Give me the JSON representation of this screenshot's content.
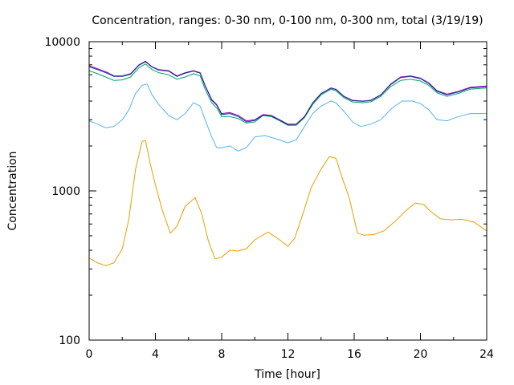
{
  "chart_data": {
    "type": "line",
    "title": "Concentration, ranges: 0-30 nm, 0-100 nm, 0-300 nm, total (3/19/19)",
    "xlabel": "Time [hour]",
    "ylabel": "Concentration",
    "xlim": [
      0,
      24
    ],
    "ylim": [
      100,
      10000
    ],
    "yscale": "log",
    "x_ticks": [
      0,
      4,
      8,
      12,
      16,
      20,
      24
    ],
    "x_tick_labels": [
      "0",
      "4",
      "8",
      "12",
      "16",
      "20",
      "24"
    ],
    "y_ticks": [
      100,
      1000,
      10000
    ],
    "y_tick_labels": [
      "100",
      "1000",
      "10000"
    ],
    "grid": false,
    "legend": "none",
    "series": [
      {
        "color": "#e69f00",
        "points": [
          [
            0,
            355
          ],
          [
            0.5,
            330
          ],
          [
            1,
            315
          ],
          [
            1.5,
            330
          ],
          [
            2,
            410
          ],
          [
            2.4,
            650
          ],
          [
            2.8,
            1400
          ],
          [
            3.2,
            2150
          ],
          [
            3.4,
            2180
          ],
          [
            3.7,
            1500
          ],
          [
            4,
            1100
          ],
          [
            4.4,
            750
          ],
          [
            4.9,
            520
          ],
          [
            5.3,
            580
          ],
          [
            5.8,
            790
          ],
          [
            6.4,
            900
          ],
          [
            6.8,
            700
          ],
          [
            7.2,
            460
          ],
          [
            7.6,
            350
          ],
          [
            8,
            360
          ],
          [
            8.5,
            400
          ],
          [
            9,
            395
          ],
          [
            9.5,
            410
          ],
          [
            10,
            470
          ],
          [
            10.8,
            530
          ],
          [
            11.5,
            470
          ],
          [
            12,
            425
          ],
          [
            12.4,
            480
          ],
          [
            12.9,
            700
          ],
          [
            13.4,
            1050
          ],
          [
            14,
            1400
          ],
          [
            14.5,
            1700
          ],
          [
            14.9,
            1650
          ],
          [
            15.3,
            1200
          ],
          [
            15.7,
            900
          ],
          [
            16.2,
            520
          ],
          [
            16.6,
            505
          ],
          [
            17.2,
            510
          ],
          [
            17.8,
            540
          ],
          [
            18.5,
            630
          ],
          [
            19.2,
            750
          ],
          [
            19.7,
            830
          ],
          [
            20.2,
            810
          ],
          [
            20.6,
            730
          ],
          [
            21.2,
            650
          ],
          [
            21.8,
            640
          ],
          [
            22.5,
            645
          ],
          [
            23.2,
            620
          ],
          [
            24,
            540
          ]
        ]
      },
      {
        "color": "#56b4e9",
        "points": [
          [
            0,
            2950
          ],
          [
            0.5,
            2800
          ],
          [
            1,
            2650
          ],
          [
            1.5,
            2700
          ],
          [
            2,
            3000
          ],
          [
            2.4,
            3500
          ],
          [
            2.8,
            4500
          ],
          [
            3.2,
            5100
          ],
          [
            3.5,
            5200
          ],
          [
            3.8,
            4400
          ],
          [
            4.2,
            3800
          ],
          [
            4.8,
            3200
          ],
          [
            5.3,
            3000
          ],
          [
            5.8,
            3300
          ],
          [
            6.3,
            3900
          ],
          [
            6.7,
            3700
          ],
          [
            7,
            3000
          ],
          [
            7.4,
            2300
          ],
          [
            7.7,
            1950
          ],
          [
            8,
            1950
          ],
          [
            8.5,
            2000
          ],
          [
            9,
            1850
          ],
          [
            9.5,
            1950
          ],
          [
            10,
            2300
          ],
          [
            10.6,
            2350
          ],
          [
            11.2,
            2250
          ],
          [
            12,
            2100
          ],
          [
            12.5,
            2200
          ],
          [
            13,
            2700
          ],
          [
            13.5,
            3300
          ],
          [
            14,
            3700
          ],
          [
            14.6,
            4000
          ],
          [
            14.9,
            3900
          ],
          [
            15.4,
            3400
          ],
          [
            15.9,
            2900
          ],
          [
            16.4,
            2700
          ],
          [
            17,
            2800
          ],
          [
            17.6,
            3000
          ],
          [
            18.3,
            3600
          ],
          [
            18.9,
            4000
          ],
          [
            19.5,
            4000
          ],
          [
            20,
            3850
          ],
          [
            20.5,
            3500
          ],
          [
            21,
            3000
          ],
          [
            21.6,
            2950
          ],
          [
            22.3,
            3150
          ],
          [
            23,
            3300
          ],
          [
            24,
            3300
          ]
        ]
      },
      {
        "color": "#009e73",
        "points": [
          [
            0,
            6400
          ],
          [
            0.5,
            6100
          ],
          [
            1,
            5800
          ],
          [
            1.5,
            5500
          ],
          [
            2,
            5550
          ],
          [
            2.5,
            5800
          ],
          [
            3,
            6700
          ],
          [
            3.4,
            7100
          ],
          [
            3.8,
            6500
          ],
          [
            4.2,
            6200
          ],
          [
            4.8,
            6000
          ],
          [
            5.3,
            5600
          ],
          [
            5.8,
            5800
          ],
          [
            6.3,
            6100
          ],
          [
            6.7,
            5900
          ],
          [
            7,
            4800
          ],
          [
            7.4,
            3900
          ],
          [
            7.7,
            3600
          ],
          [
            8,
            3150
          ],
          [
            8.5,
            3150
          ],
          [
            9,
            3050
          ],
          [
            9.5,
            2850
          ],
          [
            10,
            2900
          ],
          [
            10.5,
            3200
          ],
          [
            11,
            3150
          ],
          [
            11.5,
            2950
          ],
          [
            12,
            2750
          ],
          [
            12.5,
            2750
          ],
          [
            13,
            3100
          ],
          [
            13.5,
            3800
          ],
          [
            14,
            4400
          ],
          [
            14.6,
            4800
          ],
          [
            14.9,
            4700
          ],
          [
            15.4,
            4200
          ],
          [
            15.9,
            3950
          ],
          [
            16.5,
            3900
          ],
          [
            17,
            3950
          ],
          [
            17.6,
            4300
          ],
          [
            18.2,
            5000
          ],
          [
            18.8,
            5500
          ],
          [
            19.4,
            5600
          ],
          [
            20,
            5450
          ],
          [
            20.5,
            5100
          ],
          [
            21,
            4550
          ],
          [
            21.6,
            4300
          ],
          [
            22.3,
            4500
          ],
          [
            23,
            4800
          ],
          [
            24,
            4900
          ]
        ]
      },
      {
        "color": "#9400d3",
        "points": [
          [
            0,
            6900
          ],
          [
            0.5,
            6600
          ],
          [
            1,
            6300
          ],
          [
            1.5,
            5900
          ],
          [
            2,
            5900
          ],
          [
            2.5,
            6100
          ],
          [
            3,
            7000
          ],
          [
            3.4,
            7400
          ],
          [
            3.8,
            6800
          ],
          [
            4.2,
            6500
          ],
          [
            4.8,
            6400
          ],
          [
            5.3,
            5900
          ],
          [
            5.8,
            6200
          ],
          [
            6.3,
            6400
          ],
          [
            6.7,
            6200
          ],
          [
            7,
            5100
          ],
          [
            7.4,
            4100
          ],
          [
            7.7,
            3800
          ],
          [
            8,
            3300
          ],
          [
            8.5,
            3350
          ],
          [
            9,
            3200
          ],
          [
            9.5,
            2950
          ],
          [
            10,
            3000
          ],
          [
            10.5,
            3250
          ],
          [
            11,
            3200
          ],
          [
            11.5,
            3000
          ],
          [
            12,
            2800
          ],
          [
            12.5,
            2800
          ],
          [
            13,
            3150
          ],
          [
            13.5,
            3900
          ],
          [
            14,
            4500
          ],
          [
            14.6,
            4900
          ],
          [
            14.9,
            4800
          ],
          [
            15.4,
            4300
          ],
          [
            15.9,
            4050
          ],
          [
            16.5,
            4000
          ],
          [
            17,
            4050
          ],
          [
            17.6,
            4400
          ],
          [
            18.2,
            5200
          ],
          [
            18.8,
            5800
          ],
          [
            19.4,
            5900
          ],
          [
            20,
            5700
          ],
          [
            20.5,
            5300
          ],
          [
            21,
            4700
          ],
          [
            21.6,
            4450
          ],
          [
            22.3,
            4650
          ],
          [
            23,
            4950
          ],
          [
            24,
            5050
          ]
        ]
      },
      {
        "color": "#0a3a7a",
        "points": [
          [
            0,
            6800
          ],
          [
            0.5,
            6500
          ],
          [
            1,
            6200
          ],
          [
            1.5,
            5850
          ],
          [
            2,
            5850
          ],
          [
            2.5,
            6050
          ],
          [
            3,
            6950
          ],
          [
            3.4,
            7350
          ],
          [
            3.8,
            6750
          ],
          [
            4.2,
            6450
          ],
          [
            4.8,
            6350
          ],
          [
            5.3,
            5850
          ],
          [
            5.8,
            6150
          ],
          [
            6.3,
            6350
          ],
          [
            6.7,
            6150
          ],
          [
            7,
            5050
          ],
          [
            7.4,
            4050
          ],
          [
            7.7,
            3750
          ],
          [
            8,
            3250
          ],
          [
            8.5,
            3300
          ],
          [
            9,
            3150
          ],
          [
            9.5,
            2900
          ],
          [
            10,
            2970
          ],
          [
            10.5,
            3220
          ],
          [
            11,
            3170
          ],
          [
            11.5,
            2980
          ],
          [
            12,
            2780
          ],
          [
            12.5,
            2790
          ],
          [
            13,
            3130
          ],
          [
            13.5,
            3880
          ],
          [
            14,
            4480
          ],
          [
            14.6,
            4880
          ],
          [
            14.9,
            4780
          ],
          [
            15.4,
            4280
          ],
          [
            15.9,
            4030
          ],
          [
            16.5,
            3980
          ],
          [
            17,
            4030
          ],
          [
            17.6,
            4380
          ],
          [
            18.2,
            5150
          ],
          [
            18.8,
            5750
          ],
          [
            19.4,
            5850
          ],
          [
            20,
            5650
          ],
          [
            20.5,
            5250
          ],
          [
            21,
            4650
          ],
          [
            21.6,
            4400
          ],
          [
            22.3,
            4600
          ],
          [
            23,
            4900
          ],
          [
            24,
            5000
          ]
        ]
      }
    ]
  }
}
